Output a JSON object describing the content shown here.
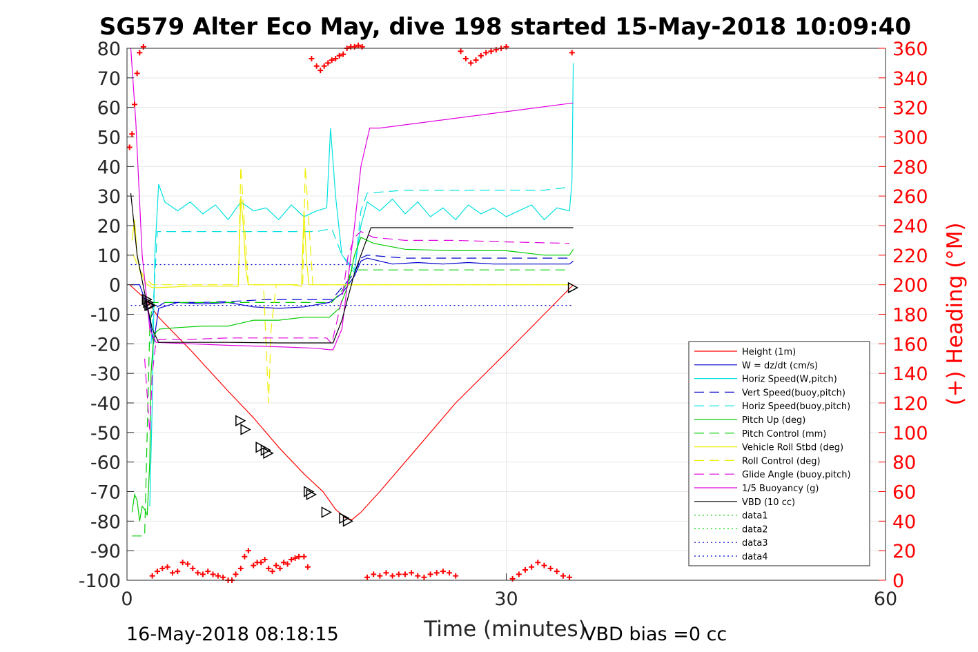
{
  "chart_data": {
    "type": "line",
    "title": "SG579 Alter Eco May, dive 198 started 15-May-2018 10:09:40",
    "xlabel": "Time (minutes)",
    "ylabel_right": "(+) Heading (°M)",
    "xlim": [
      0,
      60
    ],
    "ylim": [
      -100,
      80
    ],
    "ylim_right": [
      0,
      360
    ],
    "x_ticks": [
      "0",
      "30",
      "60"
    ],
    "x_tick_values": [
      0,
      30,
      60
    ],
    "y_ticks": [
      "80",
      "70",
      "60",
      "50",
      "40",
      "30",
      "20",
      "10",
      "0",
      "-10",
      "-20",
      "-30",
      "-40",
      "-50",
      "-60",
      "-70",
      "-80",
      "-90",
      "-100"
    ],
    "y_tick_values": [
      80,
      70,
      60,
      50,
      40,
      30,
      20,
      10,
      0,
      -10,
      -20,
      -30,
      -40,
      -50,
      -60,
      -70,
      -80,
      -90,
      -100
    ],
    "y2_ticks": [
      "360",
      "340",
      "320",
      "300",
      "280",
      "260",
      "240",
      "220",
      "200",
      "180",
      "160",
      "140",
      "120",
      "100",
      "80",
      "60",
      "40",
      "20",
      "0"
    ],
    "y2_tick_values": [
      360,
      340,
      320,
      300,
      280,
      260,
      240,
      220,
      200,
      180,
      160,
      140,
      120,
      100,
      80,
      60,
      40,
      20,
      0
    ],
    "footer_left": "16-May-2018 08:18:15",
    "footer_right": "VBD bias =0 cc",
    "grid": true,
    "legend_position": "lower-right",
    "colors": {
      "red": "#ff0000",
      "blue": "#0000cc",
      "cyan": "#00e0e0",
      "green": "#00cc00",
      "yellow": "#eeee00",
      "magenta": "#e000e0",
      "black": "#000000"
    },
    "series": [
      {
        "name": "Height (1m)",
        "color": "#ff0000",
        "dash": "solid",
        "x": [
          0.2,
          1.5,
          2.5,
          5,
          8,
          10,
          12,
          14,
          15.5,
          16.5,
          17.3,
          17.8,
          18.5,
          20,
          23,
          26,
          30,
          33,
          35.3
        ],
        "y": [
          0,
          -5,
          -11,
          -22,
          -36,
          -45,
          -55,
          -64,
          -70,
          -76,
          -79,
          -79.5,
          -77,
          -70,
          -55,
          -40,
          -23,
          -10,
          0
        ]
      },
      {
        "name": "W = dz/dt (cm/s)",
        "color": "#0000cc",
        "dash": "solid",
        "x": [
          0.3,
          1.0,
          1.5,
          1.8,
          2.1,
          2.5,
          4,
          6,
          8,
          10,
          12,
          14,
          16,
          17,
          18,
          18.5,
          19,
          21,
          23,
          25,
          27,
          29,
          31,
          33,
          35,
          35.3
        ],
        "y": [
          0,
          0,
          -6,
          -12,
          -20,
          -8,
          -6,
          -6.5,
          -6,
          -7.5,
          -8,
          -7.5,
          -6,
          -3,
          3,
          8,
          9,
          7,
          7.5,
          7,
          7.5,
          7,
          7,
          7,
          7,
          8
        ]
      },
      {
        "name": "Horiz Speed(W,pitch)",
        "color": "#00e0e0",
        "dash": "solid",
        "x": [
          1.8,
          2.0,
          2.2,
          2.5,
          3,
          4,
          5,
          6,
          7,
          8,
          9,
          10,
          11,
          12,
          13,
          14,
          15,
          15.8,
          16.1,
          16.5,
          17,
          18,
          18.5,
          19,
          20,
          21,
          22,
          23,
          24,
          25,
          26,
          27,
          28,
          29,
          30,
          31,
          32,
          33,
          34,
          35,
          35.2,
          35.3
        ],
        "y": [
          -75,
          -40,
          10,
          34,
          28,
          25,
          28,
          24,
          27,
          22,
          28,
          25,
          26,
          22,
          27,
          23,
          25,
          26,
          53,
          30,
          10,
          5,
          20,
          28,
          25,
          29,
          24,
          28,
          23,
          26,
          22,
          27,
          24,
          26,
          23,
          25,
          27,
          22,
          26,
          25,
          35,
          75
        ]
      },
      {
        "name": "Vert Speed(buoy,pitch)",
        "color": "#0000cc",
        "dash": "dashed",
        "x": [
          1.8,
          2.2,
          3,
          6,
          9,
          11,
          13,
          15,
          16.2,
          17,
          18,
          18.5,
          19,
          22,
          26,
          30,
          35
        ],
        "y": [
          -12,
          -8,
          -6,
          -6,
          -5.5,
          -5,
          -5,
          -5,
          -5,
          -1,
          4,
          9,
          10,
          9,
          9,
          9,
          9
        ]
      },
      {
        "name": "Horiz Speed(buoy,pitch)",
        "color": "#00e0e0",
        "dash": "dashed",
        "x": [
          1.9,
          2.4,
          4,
          8,
          12,
          15,
          16.2,
          17,
          18,
          18.5,
          19,
          22,
          26,
          30,
          33,
          35
        ],
        "y": [
          -20,
          18,
          18,
          18,
          18,
          18,
          19,
          10,
          4,
          25,
          31,
          32,
          32,
          32,
          32,
          33
        ]
      },
      {
        "name": "Pitch Up (deg)",
        "color": "#00cc00",
        "dash": "solid",
        "x": [
          0.4,
          0.6,
          0.8,
          1.0,
          1.2,
          1.4,
          1.6,
          1.8,
          1.9,
          2.1,
          2.3,
          2.6,
          4,
          6,
          8,
          9,
          10,
          12,
          14,
          15,
          16,
          16.8,
          17.5,
          18,
          18.5,
          19.5,
          22,
          26,
          30,
          31,
          33,
          35,
          35.3
        ],
        "y": [
          -77,
          -71,
          -73,
          -80,
          -75,
          -76,
          -78,
          -60,
          -30,
          -18,
          -16,
          -15,
          -14.5,
          -14,
          -14,
          -13,
          -12,
          -12,
          -11,
          -11,
          -11,
          -8,
          0,
          10,
          16,
          14,
          12,
          11.5,
          11.5,
          11,
          10,
          10,
          12
        ]
      },
      {
        "name": "Pitch Control (mm)",
        "color": "#00cc00",
        "dash": "dashed",
        "x": [
          0.4,
          1.4,
          1.6,
          1.8,
          2.0,
          2.3,
          8,
          15,
          16.2,
          17.2,
          17.8,
          35
        ],
        "y": [
          -85,
          -85,
          -50,
          -15,
          -6,
          -6,
          -6,
          -6,
          -6,
          -1,
          5,
          5
        ]
      },
      {
        "name": "Vehicle Roll Stbd (deg)",
        "color": "#eeee00",
        "dash": "solid",
        "x": [
          0.4,
          0.6,
          0.8,
          1.0,
          1.3,
          1.6,
          2.0,
          2.5,
          5,
          8,
          8.8,
          9.0,
          9.2,
          9.4,
          9.6,
          10.5,
          11.2,
          13,
          13.8,
          14.0,
          14.2,
          14.4,
          15,
          17,
          20,
          25,
          30,
          35
        ],
        "y": [
          15,
          22,
          10,
          5,
          2,
          0,
          -1,
          -1,
          -0.5,
          -0.5,
          -0.5,
          30,
          20,
          5,
          0,
          0,
          0,
          0,
          -0.5,
          25,
          8,
          0,
          0,
          0,
          0,
          0,
          0,
          0
        ]
      },
      {
        "name": "Roll Control (deg)",
        "color": "#eeee00",
        "dash": "dashed",
        "x": [
          0.5,
          1.0,
          1.5,
          2.0,
          2.5,
          5,
          8.8,
          9.0,
          9.3,
          9.6,
          10.8,
          11.0,
          11.2,
          11.4,
          11.8,
          13.9,
          14.1,
          14.4,
          14.7,
          16,
          20,
          25,
          30,
          35
        ],
        "y": [
          10,
          5,
          2,
          0,
          0,
          0,
          0,
          40,
          20,
          0,
          0,
          -20,
          -40,
          -15,
          0,
          0,
          40,
          20,
          0,
          0,
          0,
          0,
          0,
          0
        ]
      },
      {
        "name": "Glide Angle (buoy,pitch)",
        "color": "#e000e0",
        "dash": "dashed",
        "x": [
          1.4,
          1.8,
          2.0,
          2.3,
          2.6,
          5,
          8,
          11,
          14,
          15.8,
          16.2,
          17,
          17.5,
          18,
          18.5,
          19.5,
          22,
          26,
          30,
          35
        ],
        "y": [
          -25,
          -50,
          -30,
          -19,
          -18.5,
          -18.5,
          -18,
          -18,
          -18,
          -18,
          -20,
          -5,
          10,
          16,
          18,
          16,
          15,
          15,
          14.5,
          14
        ]
      },
      {
        "name": "1/5 Buoyancy (g)",
        "color": "#e000e0",
        "dash": "solid",
        "x": [
          0.3,
          0.7,
          1.2,
          1.8,
          2.3,
          5,
          8,
          12,
          15,
          16,
          16.3,
          17,
          18,
          18.5,
          19.2,
          20,
          35.3
        ],
        "y": [
          80,
          55,
          10,
          -15,
          -19.5,
          -20,
          -20.5,
          -21,
          -21.5,
          -22,
          -22,
          -15,
          20,
          40,
          53,
          53,
          61.5
        ]
      },
      {
        "name": "VBD (10 cc)",
        "color": "#000000",
        "dash": "solid",
        "x": [
          0.3,
          0.8,
          1.5,
          2.0,
          2.5,
          8,
          12,
          15,
          16.3,
          17,
          17.5,
          18,
          18.5,
          19.3,
          25,
          30,
          35.3
        ],
        "y": [
          31,
          10,
          -5,
          -15,
          -19.5,
          -19.5,
          -19.7,
          -19.7,
          -19.7,
          -12,
          -4,
          4,
          10,
          19.3,
          19.3,
          19.3,
          19.3
        ]
      },
      {
        "name": "data1",
        "color": "#00cc00",
        "dash": "dotted",
        "x": [],
        "y": []
      },
      {
        "name": "data2",
        "color": "#00e000",
        "dash": "dotted",
        "x": [],
        "y": []
      },
      {
        "name": "data3",
        "color": "#0000cc",
        "dash": "dotted",
        "x": [
          0.3,
          20
        ],
        "y": [
          6.8,
          6.8
        ]
      },
      {
        "name": "data4",
        "color": "#0000cc",
        "dash": "dotted",
        "x": [
          0.3,
          35.3
        ],
        "y": [
          -7,
          -7
        ]
      },
      {
        "name": "Heading (+)",
        "color": "#ff0000",
        "dash": "none",
        "axis": "right",
        "markers_only": true,
        "x": [
          0.2,
          0.4,
          0.6,
          0.8,
          1.0,
          1.3,
          2.0,
          2.4,
          2.8,
          3.2,
          3.6,
          4,
          4.4,
          4.8,
          5.2,
          5.6,
          6,
          6.4,
          6.8,
          7.2,
          7.6,
          8,
          8.3,
          8.6,
          9.0,
          9.3,
          9.6,
          10.0,
          10.3,
          10.6,
          10.9,
          11.2,
          11.5,
          11.8,
          12.1,
          12.4,
          12.7,
          13.0,
          13.3,
          13.6,
          14.0,
          14.3,
          14.6,
          15.0,
          15.3,
          15.6,
          15.9,
          16.2,
          16.5,
          16.8,
          17.1,
          17.4,
          17.7,
          18.0,
          18.3,
          18.6,
          19.0,
          19.5,
          20,
          20.5,
          21,
          21.5,
          22,
          22.5,
          23,
          23.5,
          24,
          24.5,
          25,
          25.5,
          26,
          26.4,
          26.8,
          27.2,
          27.6,
          28,
          28.4,
          28.8,
          29.2,
          29.6,
          30,
          30.5,
          31,
          31.5,
          32,
          32.5,
          33,
          33.5,
          34,
          34.5,
          35,
          35.2
        ],
        "y": [
          293,
          302,
          322,
          343,
          357,
          361,
          3,
          6,
          8,
          9,
          5,
          6,
          12,
          11,
          8,
          5,
          4,
          6,
          4,
          3,
          2,
          0,
          0,
          4,
          8,
          16,
          20,
          10,
          12,
          12,
          14,
          8,
          6,
          10,
          8,
          12,
          11,
          14,
          15,
          16,
          16,
          9,
          353,
          348,
          345,
          348,
          350,
          352,
          353,
          355,
          356,
          360,
          361,
          361,
          362,
          361,
          2,
          4,
          3,
          5,
          3,
          4,
          4,
          5,
          3,
          2,
          4,
          5,
          6,
          5,
          3,
          358,
          353,
          350,
          352,
          355,
          357,
          358,
          359,
          360,
          361,
          1,
          4,
          7,
          9,
          12,
          10,
          8,
          6,
          3,
          2,
          357
        ]
      }
    ],
    "markers": {
      "description": "black open triangles along the height track",
      "x": [
        1.6,
        1.7,
        1.8,
        1.9,
        9.0,
        9.4,
        10.6,
        11.0,
        11.2,
        14.4,
        14.6,
        15.8,
        17.2,
        17.5,
        35.3
      ],
      "y": [
        -5,
        -6,
        -7,
        -7,
        -46,
        -49,
        -55,
        -56,
        -57,
        -70,
        -71,
        -77,
        -79,
        -80,
        -1
      ]
    }
  }
}
